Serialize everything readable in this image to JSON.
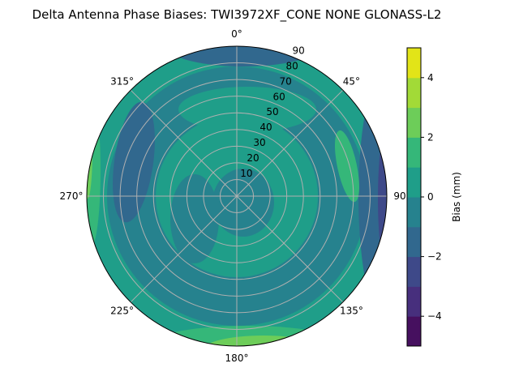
{
  "chart_data": {
    "type": "contour",
    "projection": "polar",
    "title": "Delta Antenna Phase Biases: TWI3972XF_CONE  NONE GLONASS-L2",
    "theta_direction": "clockwise",
    "theta_zero": "north",
    "angular_ticks": [
      "0°",
      "45°",
      "90°",
      "135°",
      "180°",
      "225°",
      "270°",
      "315°"
    ],
    "radial_ticks": [
      "10",
      "20",
      "30",
      "40",
      "50",
      "60",
      "70",
      "80",
      "90"
    ],
    "radial_range": [
      0,
      90
    ],
    "grid": true,
    "colorbar": {
      "label": "Bias (mm)",
      "levels": [
        -5,
        -4,
        -3,
        -2,
        -1,
        0,
        1,
        2,
        3,
        4,
        5
      ],
      "ticks": [
        "−4",
        "−2",
        "0",
        "2",
        "4"
      ],
      "tick_values": [
        -4,
        -2,
        0,
        2,
        4
      ],
      "colormap": "viridis",
      "colors": [
        "#46105f",
        "#472f7d",
        "#3e4989",
        "#31688e",
        "#26828e",
        "#1f9e89",
        "#35b779",
        "#6dcd59",
        "#a2da37",
        "#e2e418"
      ]
    },
    "regions_description_levels": {
      "dominant": [
        -1,
        1
      ],
      "max_at_edge": [
        3,
        5
      ],
      "min_at_edge": [
        -5,
        -3
      ]
    }
  }
}
